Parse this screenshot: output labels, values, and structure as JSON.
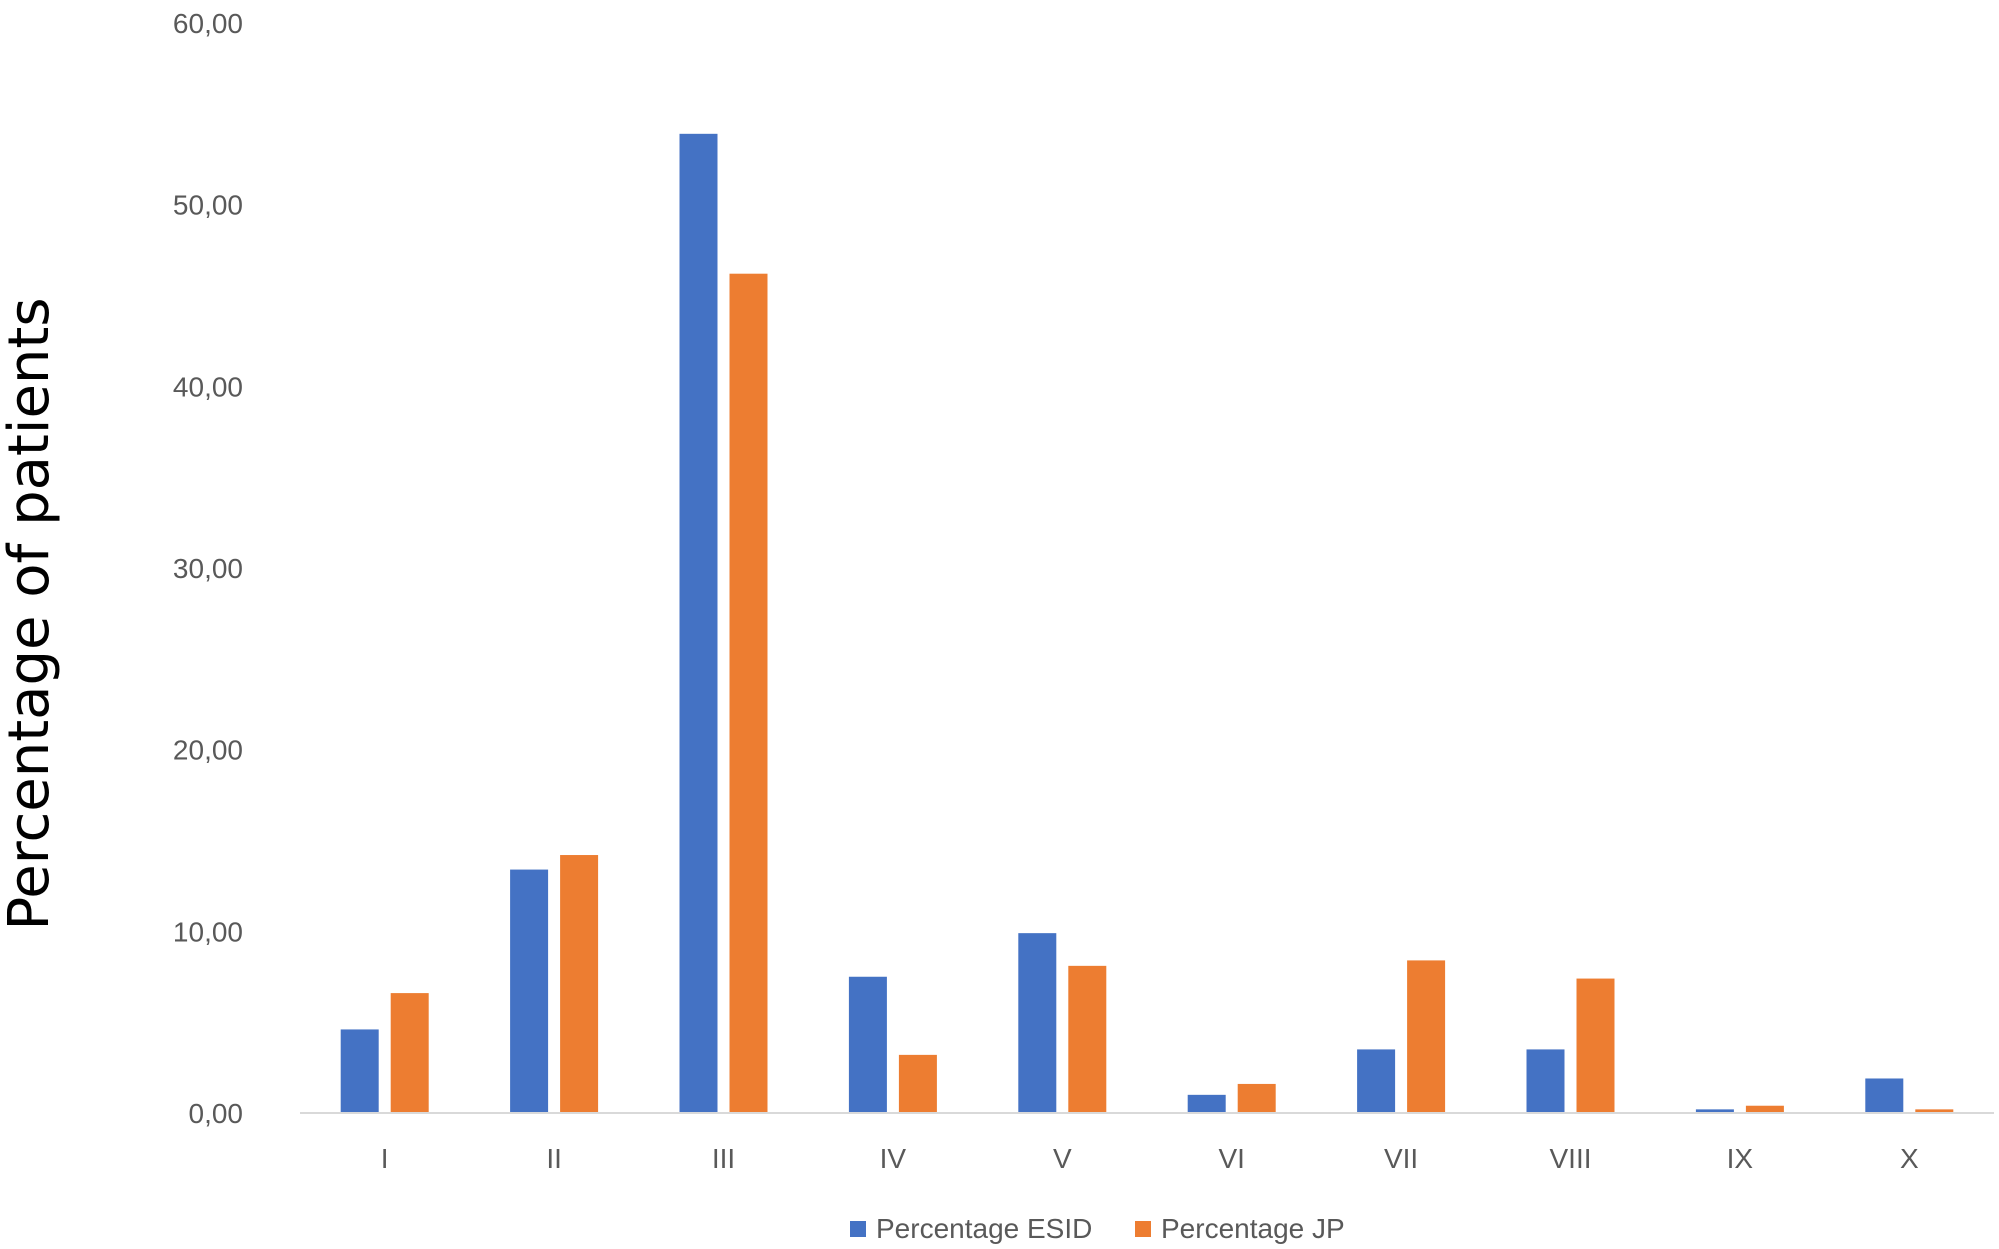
{
  "chart_data": {
    "type": "bar",
    "categories": [
      "I",
      "II",
      "III",
      "IV",
      "V",
      "VI",
      "VII",
      "VIII",
      "IX",
      "X"
    ],
    "series": [
      {
        "name": "Percentage ESID",
        "color": "#4472C4",
        "values": [
          4.6,
          13.4,
          53.9,
          7.5,
          9.9,
          1.0,
          3.5,
          3.5,
          0.2,
          1.9
        ]
      },
      {
        "name": "Percentage JP",
        "color": "#ED7D31",
        "values": [
          6.6,
          14.2,
          46.2,
          3.2,
          8.1,
          1.6,
          8.4,
          7.4,
          0.4,
          0.2
        ]
      }
    ],
    "ylabel": "Percentage of patients",
    "yticks": [
      "0,00",
      "10,00",
      "20,00",
      "30,00",
      "40,00",
      "50,00",
      "60,00"
    ],
    "ylim": [
      0,
      60
    ],
    "grid": false,
    "legend_position": "bottom"
  }
}
